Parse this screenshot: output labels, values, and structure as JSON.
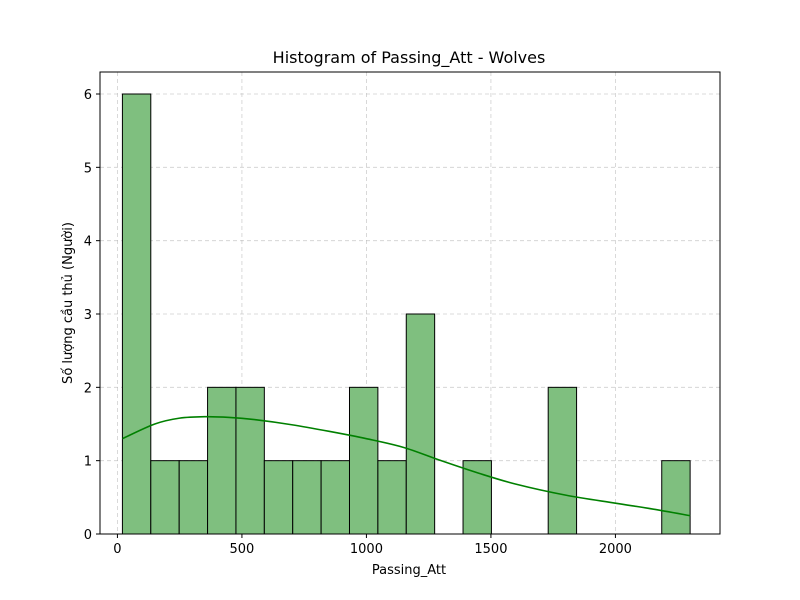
{
  "chart_data": {
    "type": "bar",
    "subtype": "histogram",
    "title": "Histogram of Passing_Att - Wolves",
    "xlabel": "Passing_Att",
    "ylabel": "Số lượng cầu thủ (Người)",
    "xlim": [
      -70,
      2420
    ],
    "ylim": [
      0,
      6.3
    ],
    "xticks": [
      0,
      500,
      1000,
      1500,
      2000
    ],
    "yticks": [
      0,
      1,
      2,
      3,
      4,
      5,
      6
    ],
    "grid": true,
    "bar_color": "#7fbf7f",
    "bar_edge_color": "#000000",
    "kde_color": "#008000",
    "bins": [
      {
        "start": 20,
        "end": 134,
        "count": 6
      },
      {
        "start": 134,
        "end": 248,
        "count": 1
      },
      {
        "start": 248,
        "end": 362,
        "count": 1
      },
      {
        "start": 362,
        "end": 476,
        "count": 2
      },
      {
        "start": 476,
        "end": 590,
        "count": 2
      },
      {
        "start": 590,
        "end": 704,
        "count": 1
      },
      {
        "start": 704,
        "end": 818,
        "count": 1
      },
      {
        "start": 818,
        "end": 932,
        "count": 1
      },
      {
        "start": 932,
        "end": 1046,
        "count": 2
      },
      {
        "start": 1046,
        "end": 1160,
        "count": 1
      },
      {
        "start": 1160,
        "end": 1274,
        "count": 3
      },
      {
        "start": 1274,
        "end": 1388,
        "count": 0
      },
      {
        "start": 1388,
        "end": 1502,
        "count": 1
      },
      {
        "start": 1502,
        "end": 1616,
        "count": 0
      },
      {
        "start": 1616,
        "end": 1730,
        "count": 0
      },
      {
        "start": 1730,
        "end": 1844,
        "count": 2
      },
      {
        "start": 1844,
        "end": 1958,
        "count": 0
      },
      {
        "start": 1958,
        "end": 2072,
        "count": 0
      },
      {
        "start": 2072,
        "end": 2186,
        "count": 0
      },
      {
        "start": 2186,
        "end": 2300,
        "count": 1
      }
    ],
    "kde": {
      "x": [
        20,
        150,
        250,
        350,
        450,
        550,
        700,
        850,
        1000,
        1150,
        1300,
        1450,
        1600,
        1800,
        2000,
        2150,
        2300
      ],
      "y": [
        1.3,
        1.5,
        1.58,
        1.6,
        1.59,
        1.56,
        1.49,
        1.4,
        1.3,
        1.18,
        1.0,
        0.83,
        0.68,
        0.53,
        0.42,
        0.34,
        0.25
      ]
    }
  }
}
